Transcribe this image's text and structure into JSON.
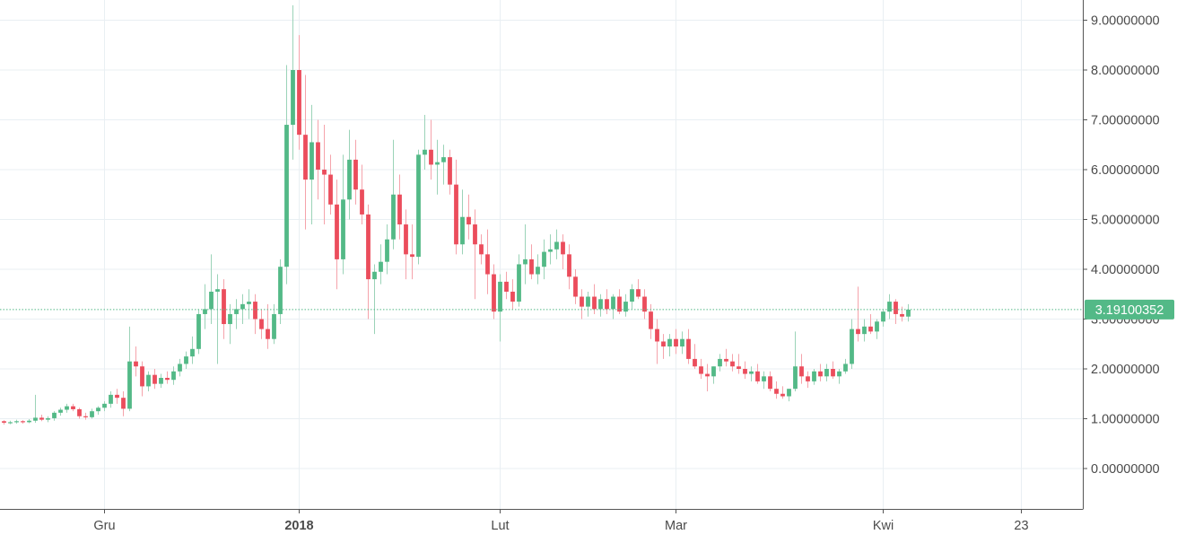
{
  "chart_data": {
    "type": "candlestick",
    "title": "",
    "xlabel": "",
    "ylabel": "",
    "ylim": [
      -0.8,
      9.5
    ],
    "grid": true,
    "y_ticks": [
      "0.00000000",
      "1.00000000",
      "2.00000000",
      "3.00000000",
      "4.00000000",
      "5.00000000",
      "6.00000000",
      "7.00000000",
      "8.00000000",
      "9.00000000"
    ],
    "y_tick_values": [
      0,
      1,
      2,
      3,
      4,
      5,
      6,
      7,
      8,
      9
    ],
    "x_ticks": [
      {
        "label": "Gru",
        "index": 16,
        "bold": false
      },
      {
        "label": "2018",
        "index": 47,
        "bold": true
      },
      {
        "label": "Lut",
        "index": 79,
        "bold": false
      },
      {
        "label": "Mar",
        "index": 107,
        "bold": false
      },
      {
        "label": "Kwi",
        "index": 140,
        "bold": false
      },
      {
        "label": "23",
        "index": 162,
        "bold": false
      }
    ],
    "last_price": 3.19100352,
    "last_price_label": "3.19100352",
    "colors": {
      "up": "#53b987",
      "down": "#eb4d5c",
      "up_wick": "#9bd3b8",
      "down_wick": "#f5a3ab",
      "grid": "#e9eff3",
      "price_line": "#53b987",
      "axis_text": "#4a4a4a"
    },
    "candles": [
      [
        0.95,
        0.97,
        0.88,
        0.92
      ],
      [
        0.92,
        0.96,
        0.89,
        0.93
      ],
      [
        0.93,
        0.98,
        0.9,
        0.95
      ],
      [
        0.95,
        0.97,
        0.9,
        0.93
      ],
      [
        0.93,
        0.99,
        0.91,
        0.96
      ],
      [
        0.96,
        1.48,
        0.92,
        1.02
      ],
      [
        1.02,
        1.08,
        0.95,
        0.98
      ],
      [
        0.98,
        1.05,
        0.93,
        1.01
      ],
      [
        1.01,
        1.15,
        0.96,
        1.12
      ],
      [
        1.12,
        1.22,
        1.06,
        1.18
      ],
      [
        1.18,
        1.3,
        1.12,
        1.25
      ],
      [
        1.25,
        1.3,
        1.15,
        1.19
      ],
      [
        1.19,
        1.22,
        1.0,
        1.05
      ],
      [
        1.05,
        1.12,
        0.98,
        1.03
      ],
      [
        1.03,
        1.2,
        1.0,
        1.15
      ],
      [
        1.15,
        1.25,
        1.08,
        1.22
      ],
      [
        1.22,
        1.35,
        1.15,
        1.3
      ],
      [
        1.3,
        1.55,
        1.22,
        1.48
      ],
      [
        1.48,
        1.6,
        1.3,
        1.42
      ],
      [
        1.42,
        1.55,
        1.05,
        1.2
      ],
      [
        1.2,
        2.85,
        1.15,
        2.15
      ],
      [
        2.15,
        2.45,
        1.85,
        2.05
      ],
      [
        2.05,
        2.15,
        1.45,
        1.65
      ],
      [
        1.65,
        1.95,
        1.55,
        1.88
      ],
      [
        1.88,
        2.0,
        1.6,
        1.7
      ],
      [
        1.7,
        1.9,
        1.62,
        1.82
      ],
      [
        1.82,
        1.95,
        1.7,
        1.78
      ],
      [
        1.78,
        2.05,
        1.68,
        1.95
      ],
      [
        1.95,
        2.2,
        1.85,
        2.1
      ],
      [
        2.1,
        2.35,
        2.0,
        2.25
      ],
      [
        2.25,
        2.65,
        2.1,
        2.4
      ],
      [
        2.4,
        3.2,
        2.3,
        3.1
      ],
      [
        3.1,
        3.7,
        2.8,
        3.2
      ],
      [
        3.2,
        4.3,
        2.9,
        3.55
      ],
      [
        3.55,
        3.9,
        2.1,
        3.6
      ],
      [
        3.6,
        3.8,
        2.6,
        2.9
      ],
      [
        2.9,
        3.3,
        2.5,
        3.1
      ],
      [
        3.1,
        3.4,
        2.8,
        3.2
      ],
      [
        3.2,
        3.5,
        2.9,
        3.3
      ],
      [
        3.3,
        3.6,
        3.0,
        3.35
      ],
      [
        3.35,
        3.5,
        2.7,
        3.0
      ],
      [
        3.0,
        3.2,
        2.6,
        2.8
      ],
      [
        2.8,
        3.3,
        2.4,
        2.6
      ],
      [
        2.6,
        3.3,
        2.5,
        3.1
      ],
      [
        3.1,
        4.2,
        2.9,
        4.05
      ],
      [
        4.05,
        8.1,
        3.7,
        6.9
      ],
      [
        6.9,
        9.3,
        6.2,
        8.0
      ],
      [
        8.0,
        8.7,
        6.4,
        6.7
      ],
      [
        6.7,
        7.9,
        4.8,
        5.8
      ],
      [
        5.8,
        7.3,
        4.9,
        6.55
      ],
      [
        6.55,
        7.0,
        5.4,
        6.0
      ],
      [
        6.0,
        6.9,
        4.9,
        5.9
      ],
      [
        5.9,
        6.3,
        5.1,
        5.3
      ],
      [
        5.3,
        5.8,
        3.6,
        4.2
      ],
      [
        4.2,
        6.3,
        3.9,
        5.4
      ],
      [
        5.4,
        6.8,
        5.0,
        6.2
      ],
      [
        6.2,
        6.6,
        5.3,
        5.6
      ],
      [
        5.6,
        6.1,
        4.9,
        5.1
      ],
      [
        5.1,
        5.3,
        3.0,
        3.8
      ],
      [
        3.8,
        4.1,
        2.7,
        3.95
      ],
      [
        3.95,
        4.5,
        3.7,
        4.15
      ],
      [
        4.15,
        4.9,
        3.9,
        4.6
      ],
      [
        4.6,
        6.6,
        4.4,
        5.5
      ],
      [
        5.5,
        5.9,
        4.6,
        4.9
      ],
      [
        4.9,
        5.2,
        3.8,
        4.3
      ],
      [
        4.3,
        4.9,
        3.8,
        4.25
      ],
      [
        4.25,
        6.4,
        4.1,
        6.3
      ],
      [
        6.3,
        7.1,
        6.0,
        6.4
      ],
      [
        6.4,
        7.0,
        5.8,
        6.1
      ],
      [
        6.1,
        6.6,
        5.5,
        6.15
      ],
      [
        6.15,
        6.5,
        5.7,
        6.25
      ],
      [
        6.25,
        6.4,
        5.5,
        5.7
      ],
      [
        5.7,
        6.2,
        4.3,
        4.5
      ],
      [
        4.5,
        5.6,
        4.3,
        5.05
      ],
      [
        5.05,
        5.5,
        4.6,
        4.9
      ],
      [
        4.9,
        5.2,
        3.4,
        4.5
      ],
      [
        4.5,
        4.7,
        4.1,
        4.3
      ],
      [
        4.3,
        4.8,
        3.5,
        3.9
      ],
      [
        3.9,
        4.1,
        3.0,
        3.15
      ],
      [
        3.15,
        3.9,
        2.55,
        3.75
      ],
      [
        3.75,
        3.95,
        3.4,
        3.55
      ],
      [
        3.55,
        3.8,
        3.2,
        3.35
      ],
      [
        3.35,
        4.3,
        3.25,
        4.1
      ],
      [
        4.1,
        4.9,
        3.7,
        4.2
      ],
      [
        4.2,
        4.5,
        3.8,
        3.9
      ],
      [
        3.9,
        4.3,
        3.7,
        4.05
      ],
      [
        4.05,
        4.6,
        3.8,
        4.35
      ],
      [
        4.35,
        4.7,
        4.1,
        4.4
      ],
      [
        4.4,
        4.8,
        4.2,
        4.55
      ],
      [
        4.55,
        4.7,
        4.0,
        4.3
      ],
      [
        4.3,
        4.5,
        3.6,
        3.85
      ],
      [
        3.85,
        4.0,
        3.3,
        3.45
      ],
      [
        3.45,
        3.6,
        3.0,
        3.25
      ],
      [
        3.25,
        3.55,
        3.05,
        3.45
      ],
      [
        3.45,
        3.7,
        3.1,
        3.2
      ],
      [
        3.2,
        3.5,
        3.05,
        3.4
      ],
      [
        3.4,
        3.6,
        3.1,
        3.2
      ],
      [
        3.2,
        3.5,
        3.0,
        3.45
      ],
      [
        3.45,
        3.6,
        3.1,
        3.15
      ],
      [
        3.15,
        3.5,
        3.05,
        3.35
      ],
      [
        3.35,
        3.7,
        3.2,
        3.6
      ],
      [
        3.6,
        3.8,
        3.4,
        3.45
      ],
      [
        3.45,
        3.6,
        3.0,
        3.15
      ],
      [
        3.15,
        3.3,
        2.6,
        2.8
      ],
      [
        2.8,
        3.0,
        2.1,
        2.55
      ],
      [
        2.55,
        2.7,
        2.2,
        2.45
      ],
      [
        2.45,
        2.7,
        2.25,
        2.6
      ],
      [
        2.6,
        2.8,
        2.3,
        2.45
      ],
      [
        2.45,
        2.75,
        2.3,
        2.6
      ],
      [
        2.6,
        2.8,
        2.1,
        2.2
      ],
      [
        2.2,
        2.5,
        2.0,
        2.05
      ],
      [
        2.05,
        2.2,
        1.8,
        1.9
      ],
      [
        1.9,
        2.1,
        1.55,
        1.85
      ],
      [
        1.85,
        2.05,
        1.7,
        2.05
      ],
      [
        2.05,
        2.3,
        1.95,
        2.2
      ],
      [
        2.2,
        2.4,
        2.05,
        2.15
      ],
      [
        2.15,
        2.3,
        1.95,
        2.05
      ],
      [
        2.05,
        2.3,
        1.9,
        2.0
      ],
      [
        2.0,
        2.15,
        1.8,
        1.9
      ],
      [
        1.9,
        2.05,
        1.75,
        1.95
      ],
      [
        1.95,
        2.1,
        1.7,
        1.75
      ],
      [
        1.75,
        1.95,
        1.6,
        1.85
      ],
      [
        1.85,
        1.95,
        1.55,
        1.6
      ],
      [
        1.6,
        1.75,
        1.4,
        1.5
      ],
      [
        1.5,
        1.65,
        1.4,
        1.45
      ],
      [
        1.45,
        1.6,
        1.35,
        1.6
      ],
      [
        1.6,
        2.75,
        1.55,
        2.05
      ],
      [
        2.05,
        2.3,
        1.7,
        1.85
      ],
      [
        1.85,
        1.95,
        1.62,
        1.75
      ],
      [
        1.75,
        2.0,
        1.68,
        1.95
      ],
      [
        1.95,
        2.1,
        1.75,
        1.85
      ],
      [
        1.85,
        2.1,
        1.75,
        2.0
      ],
      [
        2.0,
        2.15,
        1.8,
        1.85
      ],
      [
        1.85,
        2.0,
        1.7,
        1.95
      ],
      [
        1.95,
        2.2,
        1.9,
        2.1
      ],
      [
        2.1,
        3.0,
        2.0,
        2.8
      ],
      [
        2.8,
        3.65,
        2.55,
        2.7
      ],
      [
        2.7,
        3.0,
        2.55,
        2.85
      ],
      [
        2.85,
        3.1,
        2.7,
        2.75
      ],
      [
        2.75,
        3.0,
        2.6,
        2.95
      ],
      [
        2.95,
        3.2,
        2.85,
        3.15
      ],
      [
        3.15,
        3.5,
        3.0,
        3.35
      ],
      [
        3.35,
        3.4,
        2.9,
        3.1
      ],
      [
        3.1,
        3.25,
        2.95,
        3.05
      ],
      [
        3.05,
        3.3,
        2.95,
        3.19
      ]
    ]
  }
}
